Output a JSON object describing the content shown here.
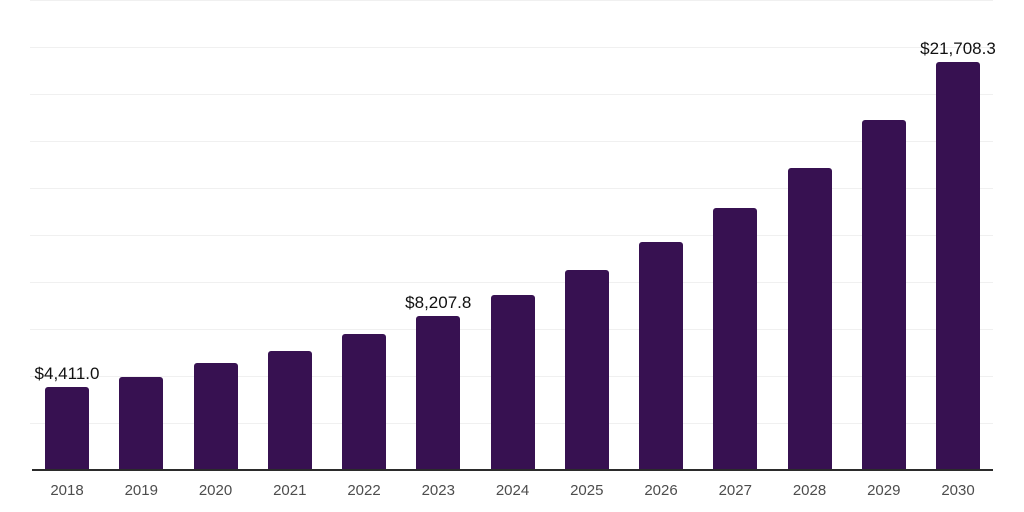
{
  "chart_data": {
    "type": "bar",
    "title": "",
    "xlabel": "",
    "ylabel": "",
    "categories": [
      "2018",
      "2019",
      "2020",
      "2021",
      "2022",
      "2023",
      "2024",
      "2025",
      "2026",
      "2027",
      "2028",
      "2029",
      "2030"
    ],
    "values": [
      4411.0,
      4950,
      5690,
      6330,
      7230,
      8207.8,
      9310,
      10640,
      12130,
      13940,
      16060,
      18620,
      21708.3
    ],
    "data_labels": [
      "$4,411.0",
      null,
      null,
      null,
      null,
      "$8,207.8",
      null,
      null,
      null,
      null,
      null,
      null,
      "$21,708.3"
    ],
    "ylim": [
      0,
      25000
    ],
    "gridline_step": 2500,
    "grid": "horizontal",
    "legend": "none",
    "y_axis_labels": "none",
    "bar_color": "#371151",
    "axis_color": "#2b2b2b",
    "grid_color": "#f0f0f0",
    "tick_label_color": "#4d4d4d",
    "data_label_color": "#111111"
  }
}
